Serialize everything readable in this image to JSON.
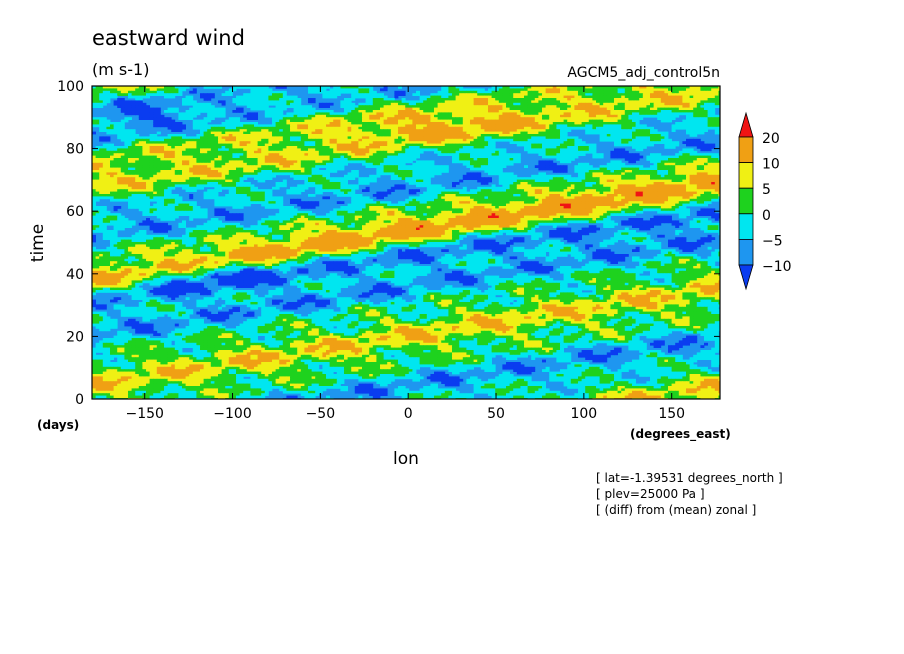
{
  "chart_data": {
    "type": "heatmap",
    "title": "eastward wind",
    "subtitle": "(m s-1)",
    "dataset": "AGCM5_adj_control5n",
    "xlabel": "lon",
    "x_unit": "(degrees_east)",
    "ylabel": "time",
    "y_unit": "(days)",
    "xlim": [
      -180,
      177.5
    ],
    "ylim": [
      0,
      100
    ],
    "x_ticks": [
      -150,
      -100,
      -50,
      0,
      50,
      100,
      150
    ],
    "y_ticks": [
      0,
      20,
      40,
      60,
      80,
      100
    ],
    "x_tick_labels": [
      "−150",
      "−100",
      "−50",
      "0",
      "50",
      "100",
      "150"
    ],
    "y_tick_labels": [
      "0",
      "20",
      "40",
      "60",
      "80",
      "100"
    ],
    "color_levels": [
      -10,
      -5,
      0,
      5,
      10,
      20
    ],
    "color_level_labels": [
      "−10",
      "−5",
      "0",
      "5",
      "10",
      "20"
    ],
    "colors": [
      "#0a3cf0",
      "#1e96f0",
      "#00e6f0",
      "#1ed21e",
      "#f0f014",
      "#f0a014",
      "#f01414"
    ],
    "annotations": [
      "[ lat=-1.39531 degrees_north ]",
      "[ plev=25000 Pa ]",
      "[ (diff) from (mean) zonal ]"
    ]
  }
}
